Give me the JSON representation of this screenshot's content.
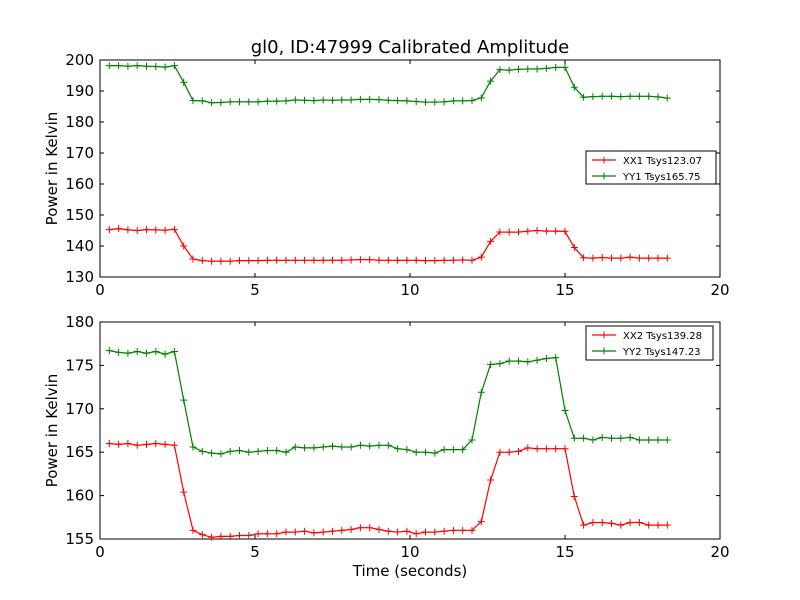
{
  "figure": {
    "title": "gl0, ID:47999 Calibrated Amplitude"
  },
  "chart_data": [
    {
      "type": "line",
      "title": "gl0, ID:47999 Calibrated Amplitude",
      "xlabel": "",
      "ylabel": "Power in Kelvin",
      "xlim": [
        0,
        20
      ],
      "ylim": [
        130,
        200
      ],
      "xticks": [
        "0",
        "5",
        "10",
        "15",
        "20"
      ],
      "yticks": [
        "130",
        "140",
        "150",
        "160",
        "170",
        "180",
        "190",
        "200"
      ],
      "grid": false,
      "legend_position": "center-right",
      "x": [
        0.3,
        0.6,
        0.9,
        1.2,
        1.5,
        1.8,
        2.1,
        2.4,
        2.7,
        3.0,
        3.3,
        3.6,
        3.9,
        4.2,
        4.5,
        4.8,
        5.1,
        5.4,
        5.7,
        6.0,
        6.3,
        6.6,
        6.9,
        7.2,
        7.5,
        7.8,
        8.1,
        8.4,
        8.7,
        9.0,
        9.3,
        9.6,
        9.9,
        10.2,
        10.5,
        10.8,
        11.1,
        11.4,
        11.7,
        12.0,
        12.3,
        12.6,
        12.9,
        13.2,
        13.5,
        13.8,
        14.1,
        14.4,
        14.7,
        15.0,
        15.3,
        15.6,
        15.9,
        16.2,
        16.5,
        16.8,
        17.1,
        17.4,
        17.7,
        18.0,
        18.3
      ],
      "series": [
        {
          "name": "XX1 Tsys123.07",
          "color": "#ff0000",
          "values": [
            145.3,
            145.6,
            145.2,
            145.0,
            145.3,
            145.2,
            145.1,
            145.4,
            140.0,
            135.8,
            135.3,
            135.1,
            135.1,
            135.1,
            135.3,
            135.3,
            135.3,
            135.4,
            135.4,
            135.4,
            135.4,
            135.4,
            135.4,
            135.4,
            135.4,
            135.4,
            135.5,
            135.6,
            135.6,
            135.4,
            135.4,
            135.4,
            135.4,
            135.4,
            135.3,
            135.3,
            135.4,
            135.4,
            135.5,
            135.4,
            136.4,
            141.5,
            144.5,
            144.5,
            144.5,
            144.8,
            145.0,
            144.8,
            144.8,
            144.7,
            139.5,
            136.2,
            136.1,
            136.3,
            136.1,
            136.1,
            136.4,
            136.1,
            136.1,
            136.1,
            136.1
          ]
        },
        {
          "name": "YY1 Tsys165.75",
          "color": "#008000",
          "values": [
            198.2,
            198.2,
            198.0,
            198.2,
            198.0,
            197.9,
            197.7,
            198.2,
            192.8,
            186.9,
            186.8,
            186.2,
            186.3,
            186.5,
            186.5,
            186.5,
            186.5,
            186.7,
            186.7,
            186.8,
            187.1,
            187.0,
            186.9,
            187.1,
            187.0,
            187.1,
            187.1,
            187.3,
            187.3,
            187.2,
            187.0,
            186.9,
            186.8,
            186.6,
            186.4,
            186.4,
            186.5,
            186.8,
            186.8,
            186.9,
            187.8,
            193.2,
            196.9,
            196.7,
            197.0,
            197.1,
            197.1,
            197.3,
            197.6,
            197.6,
            191.2,
            188.0,
            188.2,
            188.3,
            188.3,
            188.2,
            188.3,
            188.3,
            188.3,
            188.1,
            187.7
          ]
        }
      ]
    },
    {
      "type": "line",
      "title": "",
      "xlabel": "Time (seconds)",
      "ylabel": "Power in Kelvin",
      "xlim": [
        0,
        20
      ],
      "ylim": [
        155,
        180
      ],
      "xticks": [
        "0",
        "5",
        "10",
        "15",
        "20"
      ],
      "yticks": [
        "155",
        "160",
        "165",
        "170",
        "175",
        "180"
      ],
      "grid": false,
      "legend_position": "top-right",
      "x": [
        0.3,
        0.6,
        0.9,
        1.2,
        1.5,
        1.8,
        2.1,
        2.4,
        2.7,
        3.0,
        3.3,
        3.6,
        3.9,
        4.2,
        4.5,
        4.8,
        5.1,
        5.4,
        5.7,
        6.0,
        6.3,
        6.6,
        6.9,
        7.2,
        7.5,
        7.8,
        8.1,
        8.4,
        8.7,
        9.0,
        9.3,
        9.6,
        9.9,
        10.2,
        10.5,
        10.8,
        11.1,
        11.4,
        11.7,
        12.0,
        12.3,
        12.6,
        12.9,
        13.2,
        13.5,
        13.8,
        14.1,
        14.4,
        14.7,
        15.0,
        15.3,
        15.6,
        15.9,
        16.2,
        16.5,
        16.8,
        17.1,
        17.4,
        17.7,
        18.0,
        18.3
      ],
      "series": [
        {
          "name": "XX2 Tsys139.28",
          "color": "#ff0000",
          "values": [
            166.0,
            165.9,
            166.0,
            165.8,
            165.9,
            166.0,
            165.9,
            165.8,
            160.4,
            156.0,
            155.5,
            155.2,
            155.3,
            155.3,
            155.4,
            155.4,
            155.6,
            155.6,
            155.6,
            155.8,
            155.8,
            155.9,
            155.7,
            155.8,
            155.9,
            156.0,
            156.1,
            156.3,
            156.3,
            156.1,
            155.9,
            155.8,
            155.9,
            155.6,
            155.8,
            155.8,
            155.9,
            156.0,
            156.0,
            156.0,
            157.0,
            161.8,
            165.0,
            165.0,
            165.1,
            165.5,
            165.4,
            165.4,
            165.4,
            165.4,
            159.9,
            156.6,
            156.9,
            156.9,
            156.8,
            156.6,
            156.9,
            156.9,
            156.6,
            156.6,
            156.6
          ]
        },
        {
          "name": "YY2 Tsys147.23",
          "color": "#008000",
          "values": [
            176.7,
            176.5,
            176.4,
            176.6,
            176.4,
            176.6,
            176.3,
            176.6,
            171.0,
            165.6,
            165.1,
            164.9,
            164.8,
            165.1,
            165.2,
            165.0,
            165.1,
            165.2,
            165.2,
            165.0,
            165.6,
            165.5,
            165.5,
            165.6,
            165.7,
            165.6,
            165.6,
            165.8,
            165.7,
            165.8,
            165.8,
            165.4,
            165.3,
            165.0,
            165.0,
            164.9,
            165.3,
            165.3,
            165.3,
            166.4,
            171.9,
            175.1,
            175.2,
            175.5,
            175.5,
            175.4,
            175.6,
            175.8,
            175.9,
            169.8,
            166.6,
            166.6,
            166.4,
            166.7,
            166.6,
            166.6,
            166.7,
            166.4,
            166.4,
            166.4,
            166.4
          ]
        }
      ]
    }
  ]
}
